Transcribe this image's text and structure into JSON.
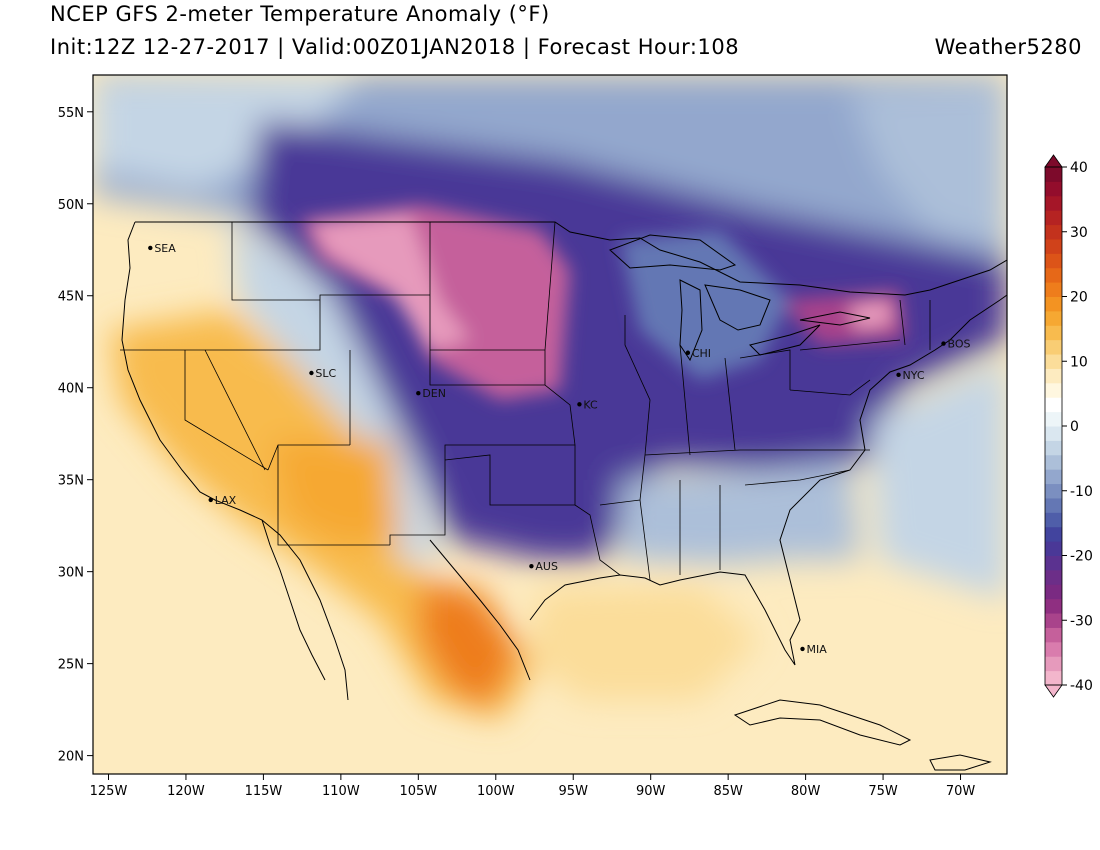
{
  "header": {
    "title": "NCEP GFS 2-meter Temperature Anomaly (°F)",
    "subtitle": "Init:12Z 12-27-2017 | Valid:00Z01JAN2018 | Forecast Hour:108",
    "credit": "Weather5280"
  },
  "map": {
    "projection": "lat-lon",
    "lat_range": [
      19,
      57
    ],
    "lon_range": [
      -126,
      -67
    ],
    "lat_ticks": [
      {
        "value": 55,
        "label": "55N"
      },
      {
        "value": 50,
        "label": "50N"
      },
      {
        "value": 45,
        "label": "45N"
      },
      {
        "value": 40,
        "label": "40N"
      },
      {
        "value": 35,
        "label": "35N"
      },
      {
        "value": 30,
        "label": "30N"
      },
      {
        "value": 25,
        "label": "25N"
      },
      {
        "value": 20,
        "label": "20N"
      }
    ],
    "lon_ticks": [
      {
        "value": -125,
        "label": "125W"
      },
      {
        "value": -120,
        "label": "120W"
      },
      {
        "value": -115,
        "label": "115W"
      },
      {
        "value": -110,
        "label": "110W"
      },
      {
        "value": -105,
        "label": "105W"
      },
      {
        "value": -100,
        "label": "100W"
      },
      {
        "value": -95,
        "label": "95W"
      },
      {
        "value": -90,
        "label": "90W"
      },
      {
        "value": -85,
        "label": "85W"
      },
      {
        "value": -80,
        "label": "80W"
      },
      {
        "value": -75,
        "label": "75W"
      },
      {
        "value": -70,
        "label": "70W"
      }
    ],
    "cities": [
      {
        "code": "SEA",
        "lat": 47.6,
        "lon": -122.3
      },
      {
        "code": "SLC",
        "lat": 40.8,
        "lon": -111.9
      },
      {
        "code": "DEN",
        "lat": 39.7,
        "lon": -105.0
      },
      {
        "code": "KC",
        "lat": 39.1,
        "lon": -94.6
      },
      {
        "code": "CHI",
        "lat": 41.9,
        "lon": -87.6
      },
      {
        "code": "NYC",
        "lat": 40.7,
        "lon": -74.0
      },
      {
        "code": "BOS",
        "lat": 42.4,
        "lon": -71.1
      },
      {
        "code": "LAX",
        "lat": 33.9,
        "lon": -118.4
      },
      {
        "code": "AUS",
        "lat": 30.3,
        "lon": -97.7
      },
      {
        "code": "MIA",
        "lat": 25.8,
        "lon": -80.2
      }
    ],
    "anomaly_regions": [
      {
        "name": "gulf-and-south-warm",
        "anomaly": 5
      },
      {
        "name": "southwest-warm",
        "anomaly": 12
      },
      {
        "name": "texas-mexico-warm",
        "anomaly": 17
      },
      {
        "name": "canada-cold",
        "anomaly": -15
      },
      {
        "name": "central-us-cold",
        "anomaly": -25
      },
      {
        "name": "northern-plains-extreme-cold",
        "anomaly": -35
      },
      {
        "name": "southeast-cool",
        "anomaly": -8
      }
    ]
  },
  "colorbar": {
    "min": -40,
    "max": 40,
    "step": 2.5,
    "tick_labels": [
      "40",
      "30",
      "20",
      "10",
      "0",
      "-10",
      "-20",
      "-30",
      "-40"
    ],
    "tick_values": [
      40,
      30,
      20,
      10,
      0,
      -10,
      -20,
      -30,
      -40
    ],
    "colors": [
      "#f3b6cc",
      "#e69abc",
      "#d97cad",
      "#c5609b",
      "#a9438b",
      "#8f2f81",
      "#7a2a82",
      "#6c2e88",
      "#5b3290",
      "#4a3897",
      "#42449e",
      "#4f5ea9",
      "#6477b4",
      "#7b8fc0",
      "#93a7cd",
      "#acbfd9",
      "#c4d5e5",
      "#dae7f0",
      "#edf5f8",
      "#ffffff",
      "#fff7e0",
      "#fdebc0",
      "#fbdd9a",
      "#f9cd74",
      "#f8bb4e",
      "#f6a832",
      "#f39322",
      "#ee7d1c",
      "#e66818",
      "#dc5418",
      "#d0421a",
      "#c3321d",
      "#b52322",
      "#a51628",
      "#930d2c",
      "#7d0a2b"
    ]
  }
}
